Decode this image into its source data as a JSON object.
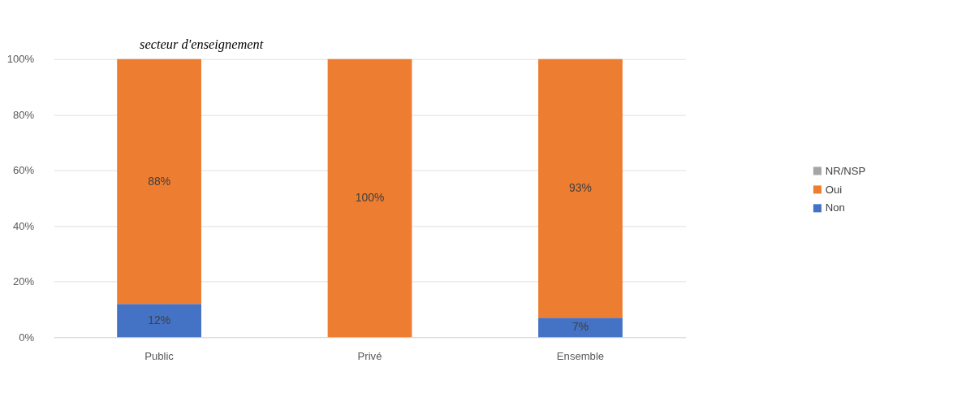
{
  "chart_data": {
    "type": "bar",
    "title": "secteur d'enseignement",
    "categories": [
      "Public",
      "Privé",
      "Ensemble"
    ],
    "stacked": true,
    "series": [
      {
        "name": "Non",
        "color": "#4472c4",
        "values": [
          12,
          0,
          7
        ],
        "value_labels": [
          "12%",
          null,
          "7%"
        ]
      },
      {
        "name": "Oui",
        "color": "#ed7d31",
        "values": [
          88,
          100,
          93
        ],
        "value_labels": [
          "88%",
          "100%",
          "93%"
        ]
      },
      {
        "name": "NR/NSP",
        "color": "#a5a5a5",
        "values": [
          0,
          0,
          0
        ],
        "value_labels": [
          null,
          null,
          null
        ]
      }
    ],
    "ylim": [
      0,
      100
    ],
    "yticks": [
      {
        "value": 0,
        "label": "0%"
      },
      {
        "value": 20,
        "label": "20%"
      },
      {
        "value": 40,
        "label": "40%"
      },
      {
        "value": 60,
        "label": "60%"
      },
      {
        "value": 80,
        "label": "80%"
      },
      {
        "value": 100,
        "label": "100%"
      }
    ],
    "grid": "y",
    "legend": "right"
  }
}
